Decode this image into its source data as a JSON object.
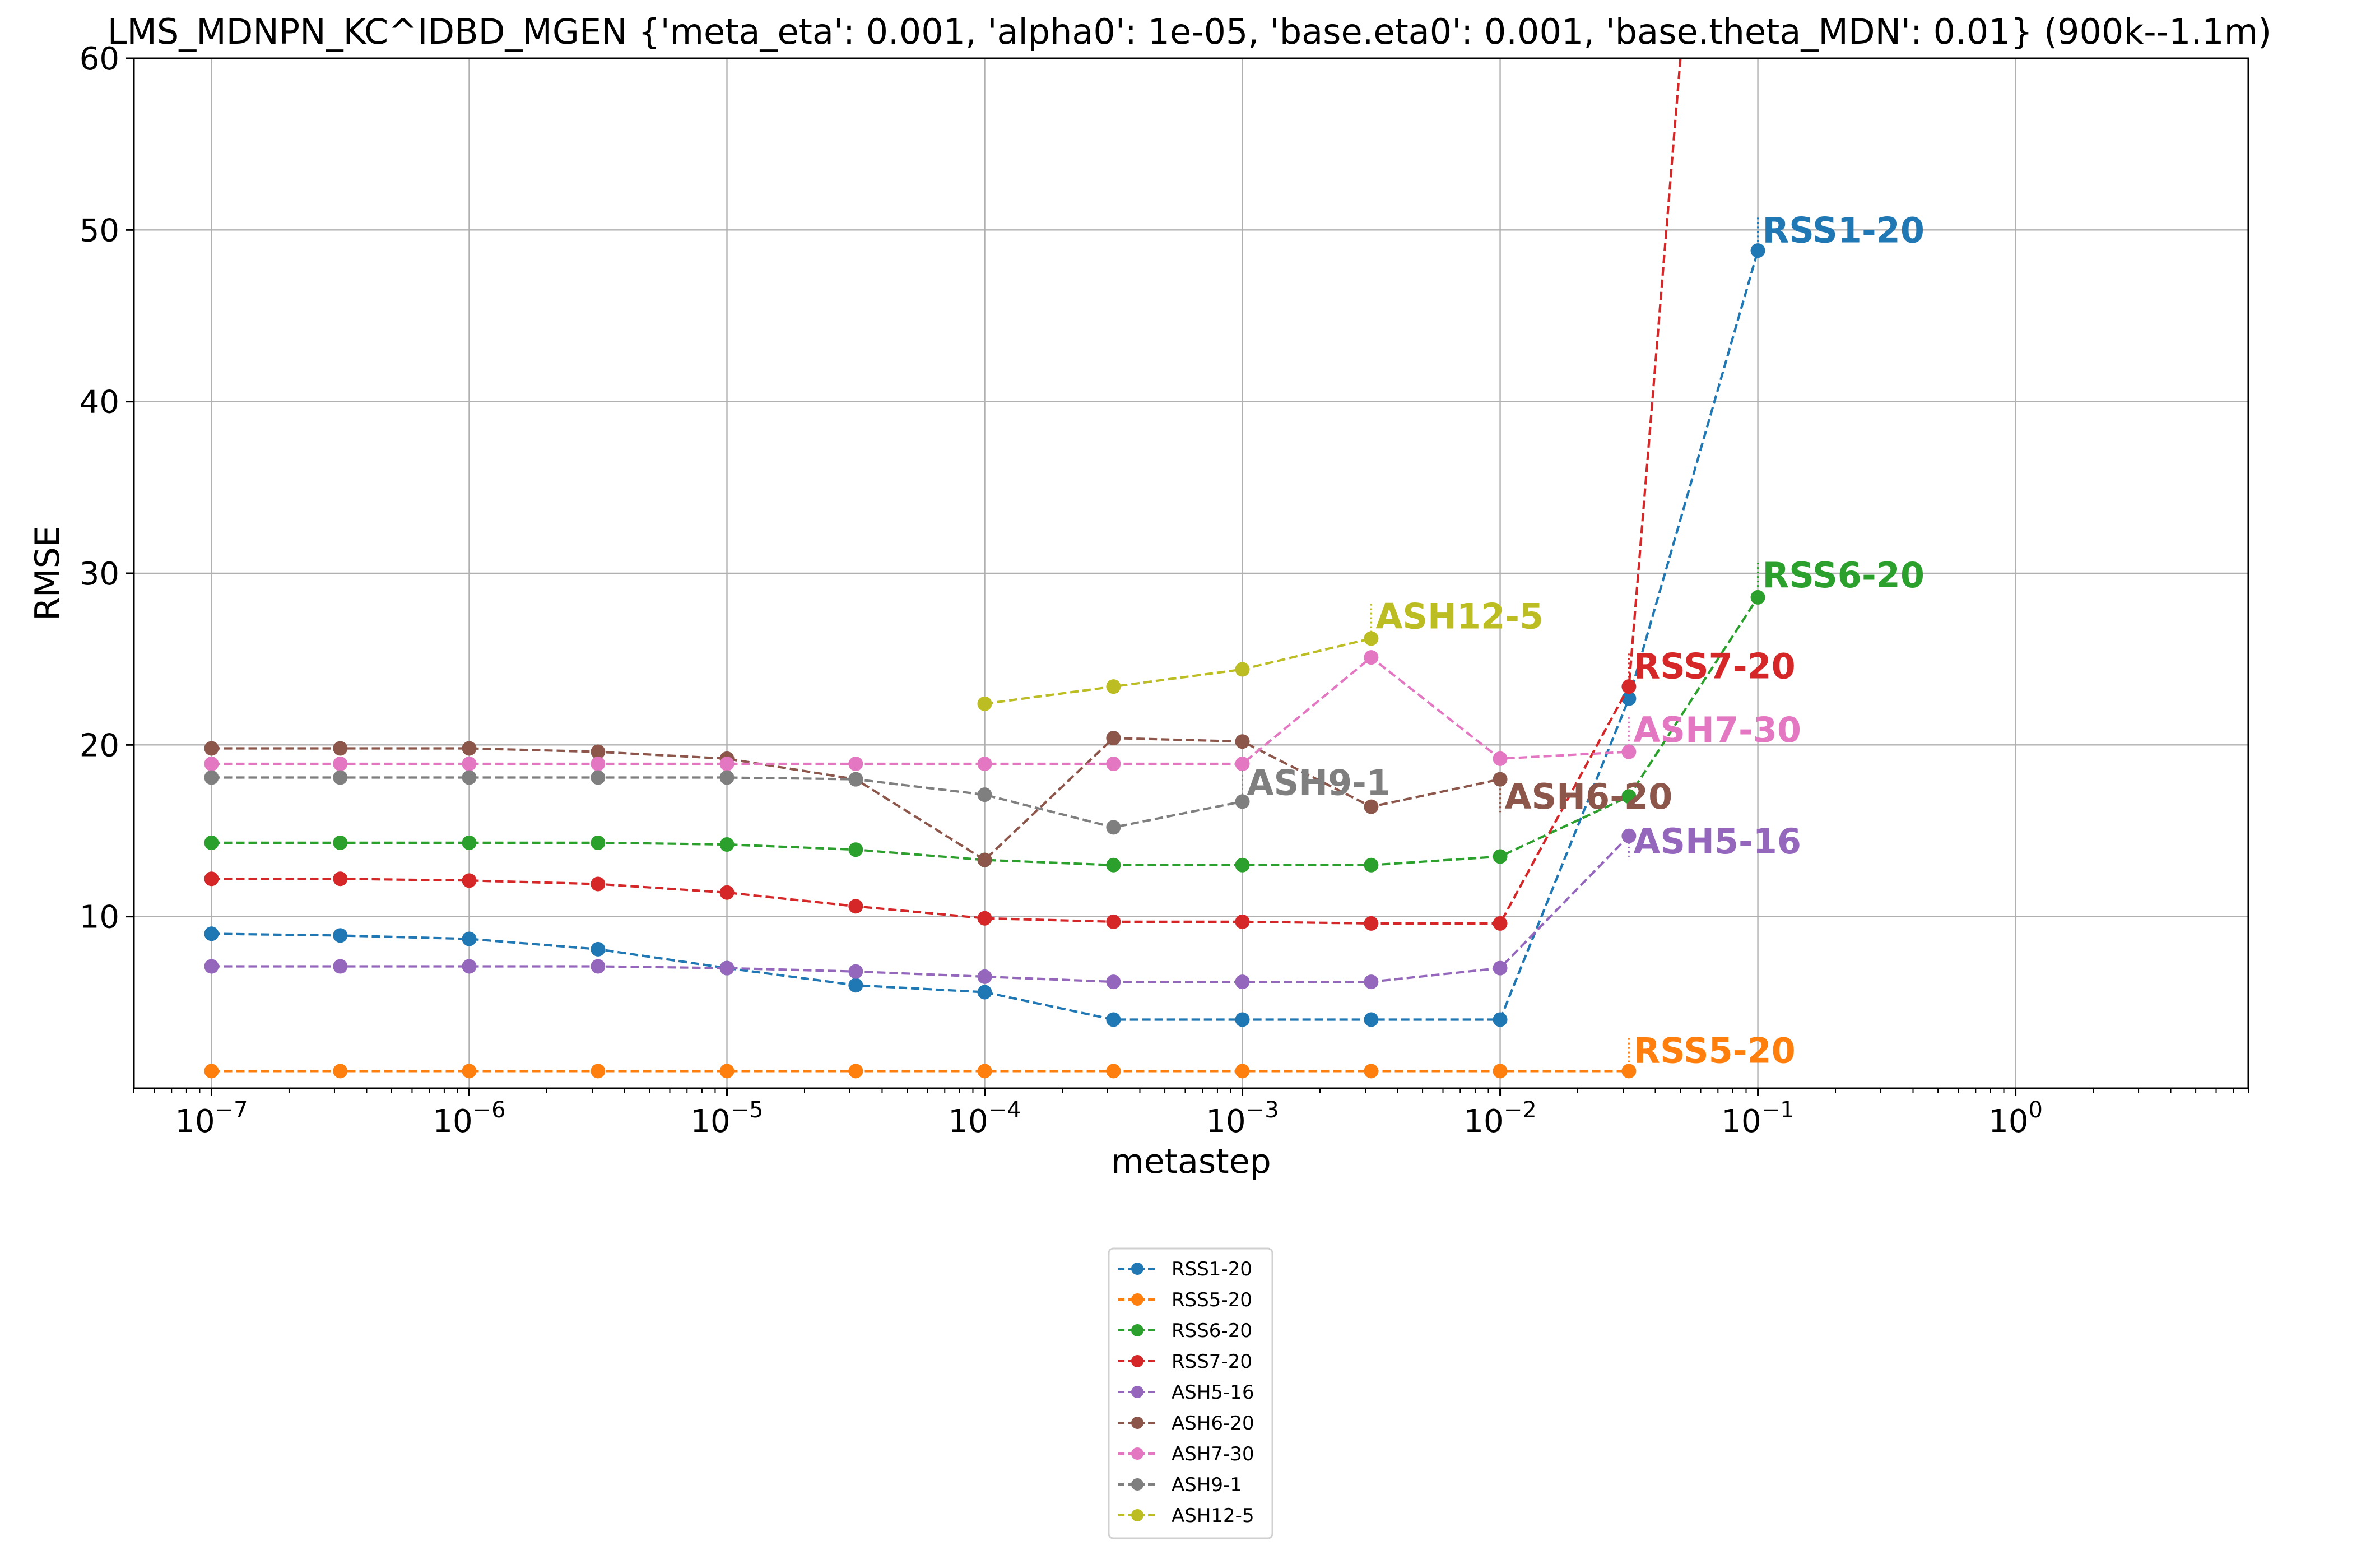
{
  "chart_data": {
    "type": "line",
    "title": "LMS_MDNPN_KC^IDBD_MGEN   {'meta_eta': 0.001, 'alpha0': 1e-05, 'base.eta0': 0.001, 'base.theta_MDN': 0.01} (900k--1.1m)",
    "xlabel": "metastep",
    "ylabel": "RMSE",
    "xscale": "log",
    "xlim": [
      5e-08,
      8
    ],
    "ylim": [
      0,
      60
    ],
    "grid": true,
    "legend_position": "below plot, centered",
    "x_ticks": [
      {
        "value": 1e-07,
        "base": "10",
        "exp": "−7"
      },
      {
        "value": 1e-06,
        "base": "10",
        "exp": "−6"
      },
      {
        "value": 1e-05,
        "base": "10",
        "exp": "−5"
      },
      {
        "value": 0.0001,
        "base": "10",
        "exp": "−4"
      },
      {
        "value": 0.001,
        "base": "10",
        "exp": "−3"
      },
      {
        "value": 0.01,
        "base": "10",
        "exp": "−2"
      },
      {
        "value": 0.1,
        "base": "10",
        "exp": "−1"
      },
      {
        "value": 1,
        "base": "10",
        "exp": "0"
      }
    ],
    "y_ticks": [
      {
        "value": 10,
        "label": "10"
      },
      {
        "value": 20,
        "label": "20"
      },
      {
        "value": 30,
        "label": "30"
      },
      {
        "value": 40,
        "label": "40"
      },
      {
        "value": 50,
        "label": "50"
      },
      {
        "value": 60,
        "label": "60"
      }
    ],
    "series": [
      {
        "name": "RSS1-20",
        "color": "#1f77b4",
        "x": [
          1e-07,
          3.16e-07,
          1e-06,
          3.16e-06,
          1e-05,
          3.16e-05,
          0.0001,
          0.000316,
          0.001,
          0.00316,
          0.01,
          0.0316,
          0.1
        ],
        "y": [
          9.0,
          8.9,
          8.7,
          8.1,
          7.0,
          6.0,
          5.6,
          4.0,
          4.0,
          4.0,
          4.0,
          22.7,
          48.8
        ],
        "label": {
          "text": "RSS1-20",
          "x": 0.1,
          "y": 50.0
        }
      },
      {
        "name": "RSS5-20",
        "color": "#ff7f0e",
        "x": [
          1e-07,
          3.16e-07,
          1e-06,
          3.16e-06,
          1e-05,
          3.16e-05,
          0.0001,
          0.000316,
          0.001,
          0.00316,
          0.01,
          0.0316
        ],
        "y": [
          1.0,
          1.0,
          1.0,
          1.0,
          1.0,
          1.0,
          1.0,
          1.0,
          1.0,
          1.0,
          1.0,
          1.0
        ],
        "label": {
          "text": "RSS5-20",
          "x": 0.0316,
          "y": 2.2
        }
      },
      {
        "name": "RSS6-20",
        "color": "#2ca02c",
        "x": [
          1e-07,
          3.16e-07,
          1e-06,
          3.16e-06,
          1e-05,
          3.16e-05,
          0.0001,
          0.000316,
          0.001,
          0.00316,
          0.01,
          0.0316,
          0.1
        ],
        "y": [
          14.3,
          14.3,
          14.3,
          14.3,
          14.2,
          13.9,
          13.3,
          13.0,
          13.0,
          13.0,
          13.5,
          17.0,
          28.6
        ],
        "label": {
          "text": "RSS6-20",
          "x": 0.1,
          "y": 29.9
        }
      },
      {
        "name": "RSS7-20",
        "color": "#d62728",
        "x": [
          1e-07,
          3.16e-07,
          1e-06,
          3.16e-06,
          1e-05,
          3.16e-05,
          0.0001,
          0.000316,
          0.001,
          0.00316,
          0.01,
          0.0316,
          0.1
        ],
        "y": [
          12.2,
          12.2,
          12.1,
          11.9,
          11.4,
          10.6,
          9.9,
          9.7,
          9.7,
          9.6,
          9.6,
          23.4,
          115
        ],
        "label": {
          "text": "RSS7-20",
          "x": 0.0316,
          "y": 24.6
        }
      },
      {
        "name": "ASH5-16",
        "color": "#9467bd",
        "x": [
          1e-07,
          3.16e-07,
          1e-06,
          3.16e-06,
          1e-05,
          3.16e-05,
          0.0001,
          0.000316,
          0.001,
          0.00316,
          0.01,
          0.0316
        ],
        "y": [
          7.1,
          7.1,
          7.1,
          7.1,
          7.0,
          6.8,
          6.5,
          6.2,
          6.2,
          6.2,
          7.0,
          14.7
        ],
        "label": {
          "text": "ASH5-16",
          "x": 0.0316,
          "y": 14.4
        }
      },
      {
        "name": "ASH6-20",
        "color": "#8c564b",
        "x": [
          1e-07,
          3.16e-07,
          1e-06,
          3.16e-06,
          1e-05,
          3.16e-05,
          0.0001,
          0.000316,
          0.001,
          0.00316,
          0.01
        ],
        "y": [
          19.8,
          19.8,
          19.8,
          19.6,
          19.2,
          18.0,
          13.3,
          20.4,
          20.2,
          16.4,
          18.0
        ],
        "label": {
          "text": "ASH6-20",
          "x": 0.01,
          "y": 17.0
        }
      },
      {
        "name": "ASH7-30",
        "color": "#e377c2",
        "x": [
          1e-07,
          3.16e-07,
          1e-06,
          3.16e-06,
          1e-05,
          3.16e-05,
          0.0001,
          0.000316,
          0.001,
          0.00316,
          0.01,
          0.0316
        ],
        "y": [
          18.9,
          18.9,
          18.9,
          18.9,
          18.9,
          18.9,
          18.9,
          18.9,
          18.9,
          25.1,
          19.2,
          19.6
        ],
        "label": {
          "text": "ASH7-30",
          "x": 0.0316,
          "y": 20.9
        }
      },
      {
        "name": "ASH9-1",
        "color": "#7f7f7f",
        "x": [
          1e-07,
          3.16e-07,
          1e-06,
          3.16e-06,
          1e-05,
          3.16e-05,
          0.0001,
          0.000316,
          0.001
        ],
        "y": [
          18.1,
          18.1,
          18.1,
          18.1,
          18.1,
          18.0,
          17.1,
          15.2,
          16.7
        ],
        "label": {
          "text": "ASH9-1",
          "x": 0.001,
          "y": 17.8
        }
      },
      {
        "name": "ASH12-5",
        "color": "#bcbd22",
        "x": [
          0.0001,
          0.000316,
          0.001,
          0.00316
        ],
        "y": [
          22.4,
          23.4,
          24.4,
          26.2
        ],
        "label": {
          "text": "ASH12-5",
          "x": 0.00316,
          "y": 27.5
        }
      }
    ]
  }
}
